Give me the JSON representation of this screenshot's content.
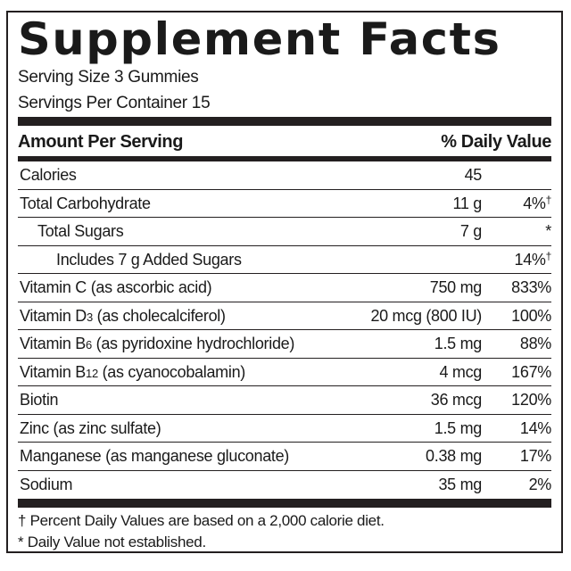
{
  "title": "Supplement Facts",
  "serving_size": "Serving Size 3 Gummies",
  "servings_per_container": "Servings Per Container 15",
  "header": {
    "amount": "Amount Per Serving",
    "dv": "% Daily Value"
  },
  "rows": [
    {
      "name": "Calories",
      "sub": "",
      "rest": "",
      "amount": "45",
      "dv": "",
      "mark": ""
    },
    {
      "name": "Total Carbohydrate",
      "sub": "",
      "rest": "",
      "amount": "11 g",
      "dv": "4%",
      "mark": "†"
    },
    {
      "name": "Total Sugars",
      "sub": "",
      "rest": "",
      "amount": "7 g",
      "dv": "*",
      "mark": ""
    },
    {
      "name": "Includes 7 g Added Sugars",
      "sub": "",
      "rest": "",
      "amount": "",
      "dv": "14%",
      "mark": "†"
    },
    {
      "name": "Vitamin C (as ascorbic acid)",
      "sub": "",
      "rest": "",
      "amount": "750 mg",
      "dv": "833%",
      "mark": ""
    },
    {
      "name": "Vitamin D",
      "sub": "3",
      "rest": " (as cholecalciferol)",
      "amount": "20 mcg (800 IU)",
      "dv": "100%",
      "mark": ""
    },
    {
      "name": "Vitamin B",
      "sub": "6",
      "rest": " (as pyridoxine hydrochloride)",
      "amount": "1.5 mg",
      "dv": "88%",
      "mark": ""
    },
    {
      "name": "Vitamin B",
      "sub": "12",
      "rest": " (as cyanocobalamin)",
      "amount": "4 mcg",
      "dv": "167%",
      "mark": ""
    },
    {
      "name": "Biotin",
      "sub": "",
      "rest": "",
      "amount": "36 mcg",
      "dv": "120%",
      "mark": ""
    },
    {
      "name": "Zinc (as zinc sulfate)",
      "sub": "",
      "rest": "",
      "amount": "1.5 mg",
      "dv": "14%",
      "mark": ""
    },
    {
      "name": "Manganese (as manganese gluconate)",
      "sub": "",
      "rest": "",
      "amount": "0.38 mg",
      "dv": "17%",
      "mark": ""
    },
    {
      "name": "Sodium",
      "sub": "",
      "rest": "",
      "amount": "35 mg",
      "dv": "2%",
      "mark": ""
    }
  ],
  "footnotes": [
    "† Percent Daily Values are based on a 2,000 calorie diet.",
    "* Daily Value not established."
  ]
}
